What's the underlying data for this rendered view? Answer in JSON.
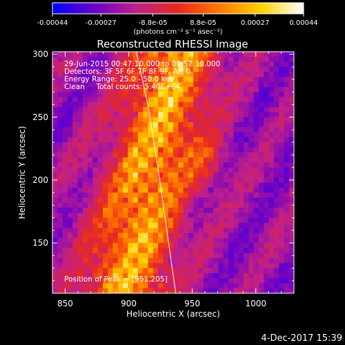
{
  "chart_data": {
    "type": "heatmap",
    "title": "Reconstructed RHESSI Image",
    "xlabel": "Heliocentric X (arcsec)",
    "ylabel": "Heliocentric Y (arcsec)",
    "xlim": [
      840,
      1030
    ],
    "ylim": [
      110,
      302
    ],
    "xticks": [
      850,
      900,
      950,
      1000
    ],
    "yticks": [
      150,
      200,
      250,
      300
    ],
    "colorbar": {
      "colormap": "blue-purple-red-yellow-white",
      "colors": [
        "#0000ff",
        "#6a00c8",
        "#c0208a",
        "#e8281e",
        "#ff7a00",
        "#ffd400",
        "#ffffff"
      ],
      "range": [
        -0.00044,
        0.00044
      ],
      "tick_labels": [
        "-0.00044",
        "-0.00027",
        "-8.8e-05",
        "8.8e-05",
        "0.00027",
        "0.00044"
      ],
      "unit_label": "(photons cm⁻² s⁻¹ asec⁻²)"
    },
    "annotations": [
      "29-Jun-2015 00:47:10.000 to 00:57:10.000",
      "Detectors: 3F 5F 6F 7F 8F 9F, Att 0",
      "Energy Range: 25.0 - 50.0 keV",
      "Clean     Total counts: 5.40E+04"
    ],
    "peak_label": "Position of Peak = [951,205]",
    "peak": {
      "x": 951,
      "y": 205
    },
    "limb_curve": {
      "x": [
        906,
        915,
        923,
        930,
        937
      ],
      "y": [
        302,
        260,
        210,
        160,
        110
      ]
    },
    "date_stamp": "4-Dec-2017 15:39"
  }
}
